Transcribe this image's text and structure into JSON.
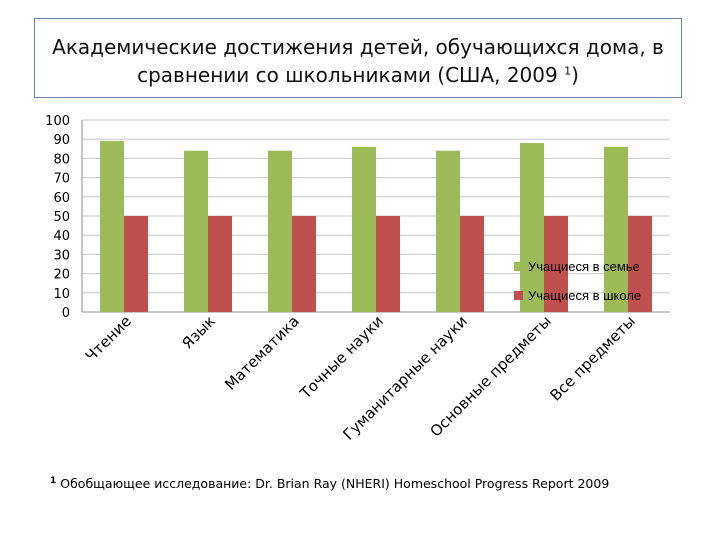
{
  "chart_data": {
    "type": "bar",
    "title_line1": "Академические достижения детей, обучающихся дома, в",
    "title_line2": "сравнении со школьниками (США, 2009",
    "title_footnote_mark": "1",
    "title_close": ")",
    "categories": [
      "Чтение",
      "Язык",
      "Математика",
      "Точные науки",
      "Гуманитарные науки",
      "Основные предметы",
      "Все предметы"
    ],
    "series": [
      {
        "name": "Учащиеся в семье",
        "color": "#9bbb59",
        "values": [
          89,
          84,
          84,
          86,
          84,
          88,
          86
        ]
      },
      {
        "name": "Учащиеся в школе",
        "color": "#c0504d",
        "values": [
          50,
          50,
          50,
          50,
          50,
          50,
          50
        ]
      }
    ],
    "ylim": [
      0,
      100
    ],
    "yticks": [
      0,
      10,
      20,
      30,
      40,
      50,
      60,
      70,
      80,
      90,
      100
    ],
    "grid": true,
    "legend_position": "right"
  },
  "footnote": {
    "mark": "1",
    "text": "Обобщающее исследование: Dr. Brian Ray (NHERI) Homeschool Progress Report 2009"
  }
}
